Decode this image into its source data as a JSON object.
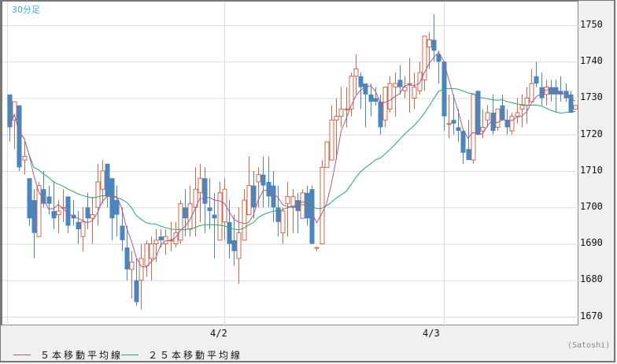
{
  "chart_data": {
    "type": "candlestick",
    "title": "30分足",
    "timeframe": "30分足",
    "xlabel": "",
    "ylabel": "",
    "ylim": [
      1667,
      1757
    ],
    "yticks": [
      1750,
      1740,
      1730,
      1720,
      1710,
      1700,
      1690,
      1680,
      1670
    ],
    "xticks": [
      {
        "label": "4/2",
        "index": 44
      },
      {
        "label": "4/3",
        "index": 89
      }
    ],
    "grid": true,
    "legend_position": "bottom-left",
    "legend": [
      "５本移動平均線",
      "２５本移動平均線"
    ],
    "colors": {
      "up": "#d0674a",
      "down": "#4a86bd",
      "ma5": "#b0588e",
      "ma25": "#2aa86a"
    },
    "candles": [
      [
        1731,
        1731,
        1718,
        1722
      ],
      [
        1724,
        1729,
        1716,
        1729
      ],
      [
        1728,
        1728,
        1710,
        1711
      ],
      [
        1713,
        1718,
        1709,
        1714
      ],
      [
        1708,
        1708,
        1695,
        1697
      ],
      [
        1702,
        1705,
        1686,
        1693
      ],
      [
        1692,
        1707,
        1692,
        1706
      ],
      [
        1705,
        1710,
        1700,
        1701
      ],
      [
        1703,
        1706,
        1698,
        1701
      ],
      [
        1699,
        1707,
        1694,
        1697
      ],
      [
        1698,
        1702,
        1693,
        1699
      ],
      [
        1700,
        1705,
        1696,
        1700
      ],
      [
        1703,
        1703,
        1693,
        1695
      ],
      [
        1698,
        1702,
        1695,
        1697
      ],
      [
        1696,
        1699,
        1690,
        1694
      ],
      [
        1692,
        1700,
        1688,
        1696
      ],
      [
        1700,
        1704,
        1694,
        1697
      ],
      [
        1697,
        1703,
        1690,
        1698
      ],
      [
        1700,
        1712,
        1695,
        1707
      ],
      [
        1705,
        1713,
        1701,
        1710
      ],
      [
        1712,
        1712,
        1700,
        1703
      ],
      [
        1708,
        1708,
        1691,
        1697
      ],
      [
        1702,
        1706,
        1692,
        1698
      ],
      [
        1695,
        1700,
        1688,
        1691
      ],
      [
        1689,
        1695,
        1680,
        1683
      ],
      [
        1683,
        1688,
        1675,
        1685
      ],
      [
        1680,
        1686,
        1673,
        1674
      ],
      [
        1680,
        1690,
        1672,
        1686
      ],
      [
        1684,
        1691,
        1681,
        1690
      ],
      [
        1686,
        1692,
        1680,
        1690
      ],
      [
        1690,
        1694,
        1685,
        1691
      ],
      [
        1692,
        1694,
        1689,
        1691
      ],
      [
        1690,
        1694,
        1687,
        1692
      ],
      [
        1691,
        1696,
        1688,
        1691
      ],
      [
        1690,
        1696,
        1689,
        1693
      ],
      [
        1691,
        1702,
        1690,
        1701
      ],
      [
        1700,
        1705,
        1692,
        1697
      ],
      [
        1694,
        1706,
        1692,
        1701
      ],
      [
        1700,
        1711,
        1692,
        1705
      ],
      [
        1704,
        1712,
        1696,
        1708
      ],
      [
        1708,
        1711,
        1693,
        1701
      ],
      [
        1700,
        1708,
        1694,
        1699
      ],
      [
        1698,
        1704,
        1686,
        1697
      ],
      [
        1691,
        1707,
        1691,
        1704
      ],
      [
        1696,
        1708,
        1691,
        1705
      ],
      [
        1696,
        1702,
        1686,
        1690
      ],
      [
        1691,
        1698,
        1684,
        1688
      ],
      [
        1686,
        1700,
        1679,
        1693
      ],
      [
        1691,
        1705,
        1691,
        1702
      ],
      [
        1698,
        1714,
        1698,
        1706
      ],
      [
        1706,
        1710,
        1697,
        1700
      ],
      [
        1707,
        1711,
        1700,
        1709
      ],
      [
        1709,
        1714,
        1700,
        1706
      ],
      [
        1707,
        1714,
        1700,
        1703
      ],
      [
        1706,
        1710,
        1696,
        1700
      ],
      [
        1700,
        1706,
        1692,
        1696
      ],
      [
        1693,
        1700,
        1690,
        1699
      ],
      [
        1701,
        1707,
        1692,
        1703
      ],
      [
        1700,
        1705,
        1693,
        1703
      ],
      [
        1702,
        1704,
        1693,
        1699
      ],
      [
        1697,
        1705,
        1697,
        1704
      ],
      [
        1704,
        1706,
        1695,
        1697
      ],
      [
        1705,
        1706,
        1690,
        1690
      ],
      [
        1689,
        1689,
        1688,
        1689
      ],
      [
        1690,
        1713,
        1690,
        1711
      ],
      [
        1711,
        1717,
        1711,
        1718
      ],
      [
        1713,
        1728,
        1713,
        1724
      ],
      [
        1724,
        1730,
        1713,
        1725
      ],
      [
        1725,
        1733,
        1722,
        1727
      ],
      [
        1727,
        1733,
        1722,
        1727
      ],
      [
        1727,
        1737,
        1725,
        1736
      ],
      [
        1736,
        1742,
        1731,
        1738
      ],
      [
        1736,
        1737,
        1727,
        1733
      ],
      [
        1734,
        1733,
        1722,
        1731
      ],
      [
        1731,
        1734,
        1725,
        1729
      ],
      [
        1730,
        1733,
        1728,
        1729
      ],
      [
        1729,
        1731,
        1720,
        1722
      ],
      [
        1724,
        1732,
        1722,
        1733
      ],
      [
        1727,
        1736,
        1726,
        1734
      ],
      [
        1733,
        1737,
        1725,
        1734
      ],
      [
        1735,
        1739,
        1731,
        1733
      ],
      [
        1732,
        1736,
        1730,
        1733
      ],
      [
        1734,
        1741,
        1726,
        1734
      ],
      [
        1730,
        1737,
        1727,
        1733
      ],
      [
        1732,
        1740,
        1731,
        1737
      ],
      [
        1735,
        1747,
        1732,
        1747
      ],
      [
        1744,
        1748,
        1738,
        1746
      ],
      [
        1746,
        1753,
        1740,
        1743
      ],
      [
        1742,
        1743,
        1734,
        1740
      ],
      [
        1740,
        1740,
        1721,
        1725
      ],
      [
        1723,
        1731,
        1719,
        1723
      ],
      [
        1724,
        1731,
        1720,
        1723
      ],
      [
        1722,
        1727,
        1718,
        1721
      ],
      [
        1721,
        1721,
        1712,
        1715
      ],
      [
        1716,
        1724,
        1713,
        1713
      ],
      [
        1713,
        1731,
        1712,
        1731
      ],
      [
        1732,
        1732,
        1720,
        1720
      ],
      [
        1721,
        1727,
        1719,
        1722
      ],
      [
        1724,
        1728,
        1722,
        1726
      ],
      [
        1726,
        1731,
        1720,
        1721
      ],
      [
        1722,
        1727,
        1721,
        1727
      ],
      [
        1728,
        1731,
        1724,
        1724
      ],
      [
        1724,
        1727,
        1720,
        1722
      ],
      [
        1721,
        1726,
        1720,
        1725
      ],
      [
        1725,
        1730,
        1723,
        1726
      ],
      [
        1727,
        1731,
        1722,
        1728
      ],
      [
        1728,
        1733,
        1723,
        1730
      ],
      [
        1729,
        1738,
        1730,
        1734
      ],
      [
        1736,
        1740,
        1733,
        1734
      ],
      [
        1733,
        1737,
        1728,
        1730
      ],
      [
        1731,
        1735,
        1728,
        1733
      ],
      [
        1733,
        1735,
        1729,
        1731
      ],
      [
        1733,
        1735,
        1726,
        1731
      ],
      [
        1732,
        1736,
        1729,
        1731
      ],
      [
        1732,
        1734,
        1729,
        1730
      ],
      [
        1731,
        1732,
        1726,
        1726
      ],
      [
        1727,
        1728,
        1727,
        1728
      ]
    ],
    "ma5_note": "5-period moving average of close",
    "ma25_note": "25-period moving average of close"
  },
  "ui": {
    "timeframe_label": "30分足",
    "y_axis_labels": [
      "1750",
      "1740",
      "1730",
      "1720",
      "1710",
      "1700",
      "1690",
      "1680",
      "1670"
    ],
    "x_axis_labels": [
      "4/2",
      "4/3"
    ],
    "legend_ma5": "５本移動平均線",
    "legend_ma25": "２５本移動平均線",
    "credit": "(Satoshi)"
  }
}
